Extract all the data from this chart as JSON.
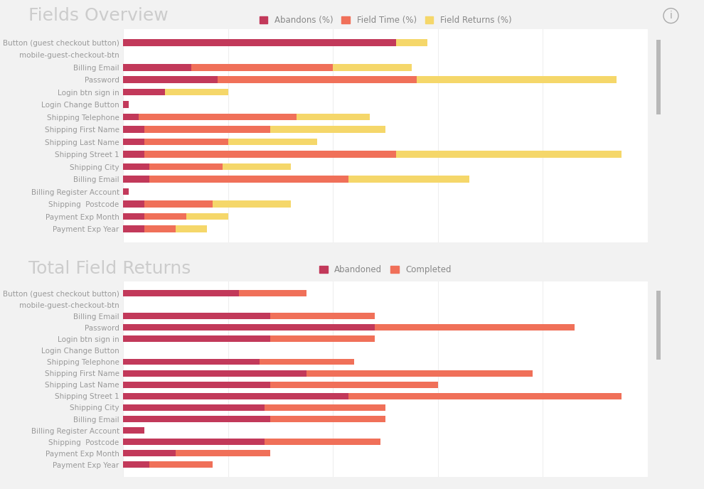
{
  "title1": "Fields Overview",
  "title2": "Total Field Returns",
  "background_color": "#f2f2f2",
  "panel_color": "#ffffff",
  "categories": [
    "Button (guest checkout button)",
    "mobile-guest-checkout-btn",
    "Billing Email",
    "Password",
    "Login btn sign in",
    "Login Change Button",
    "Shipping Telephone",
    "Shipping First Name",
    "Shipping Last Name",
    "Shipping Street 1",
    "Shipping City",
    "Billing Email",
    "Billing Register Account",
    "Shipping  Postcode",
    "Payment Exp Month",
    "Payment Exp Year"
  ],
  "chart1": {
    "abandons": [
      52,
      0,
      13,
      18,
      8,
      1,
      3,
      4,
      4,
      4,
      5,
      5,
      1,
      4,
      4,
      4
    ],
    "field_time": [
      0,
      0,
      27,
      38,
      0,
      0,
      30,
      24,
      16,
      48,
      14,
      38,
      0,
      13,
      8,
      6
    ],
    "field_returns": [
      6,
      0,
      15,
      38,
      12,
      0,
      14,
      22,
      17,
      43,
      13,
      23,
      0,
      15,
      8,
      6
    ]
  },
  "chart2": {
    "abandoned": [
      22,
      0,
      28,
      48,
      28,
      0,
      26,
      35,
      28,
      43,
      27,
      28,
      4,
      27,
      10,
      5
    ],
    "completed": [
      13,
      0,
      20,
      38,
      20,
      0,
      18,
      43,
      32,
      52,
      23,
      22,
      0,
      22,
      18,
      12
    ]
  },
  "color_abandons": "#c2395a",
  "color_field_time": "#f07059",
  "color_field_returns": "#f5d76a",
  "color_abandoned": "#c2395a",
  "color_completed": "#f07059",
  "legend1_labels": [
    "Abandons (%)",
    "Field Time (%)",
    "Field Returns (%)"
  ],
  "legend2_labels": [
    "Abandoned",
    "Completed"
  ],
  "title_fontsize": 18,
  "label_fontsize": 7.5,
  "legend_fontsize": 8.5,
  "axis_tick_fontsize": 7,
  "xlim": [
    0,
    100
  ],
  "bar_height": 0.55
}
